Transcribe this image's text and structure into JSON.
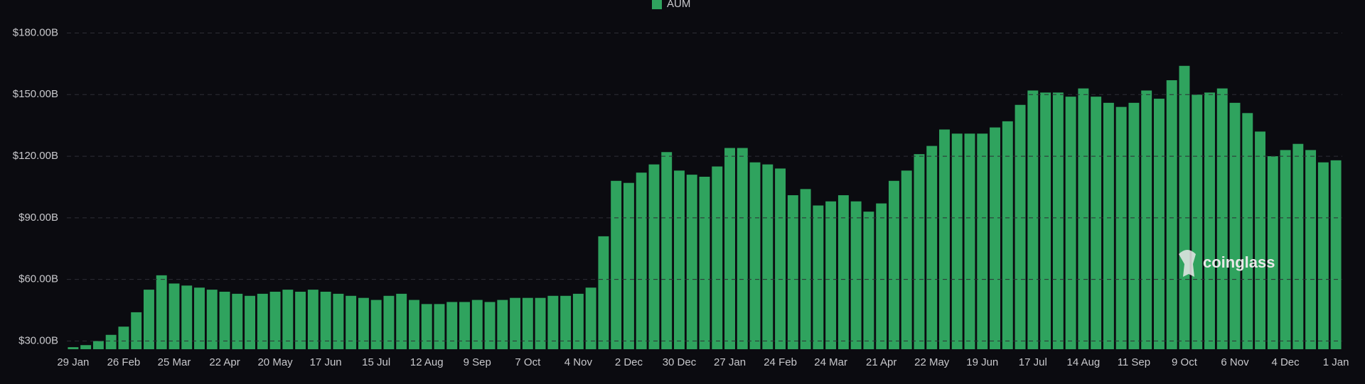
{
  "chart_data": {
    "type": "bar",
    "legend": "AUM",
    "watermark": "coinglass",
    "color": "#2fa35e",
    "grid": true,
    "categories": [
      "29 Jan",
      null,
      null,
      null,
      "26 Feb",
      null,
      null,
      null,
      "25 Mar",
      null,
      null,
      null,
      "22 Apr",
      null,
      null,
      null,
      "20 May",
      null,
      null,
      null,
      "17 Jun",
      null,
      null,
      null,
      "15 Jul",
      null,
      null,
      null,
      "12 Aug",
      null,
      null,
      null,
      "9 Sep",
      null,
      null,
      null,
      "7 Oct",
      null,
      null,
      null,
      "4 Nov",
      null,
      null,
      null,
      "2 Dec",
      null,
      null,
      null,
      "30 Dec",
      null,
      null,
      null,
      "27 Jan",
      null,
      null,
      null,
      "24 Feb",
      null,
      null,
      null,
      "24 Mar",
      null,
      null,
      null,
      "21 Apr",
      null,
      null,
      null,
      "22 May",
      null,
      null,
      null,
      "19 Jun",
      null,
      null,
      null,
      "17 Jul",
      null,
      null,
      null,
      "14 Aug",
      null,
      null,
      null,
      "11 Sep",
      null,
      null,
      null,
      "9 Oct",
      null,
      null,
      null,
      "6 Nov",
      null,
      null,
      null,
      "4 Dec",
      null,
      null,
      null,
      "1 Jan"
    ],
    "values": [
      27,
      28,
      30,
      33,
      37,
      44,
      55,
      62,
      58,
      57,
      56,
      55,
      54,
      53,
      52,
      53,
      54,
      55,
      54,
      55,
      54,
      53,
      52,
      51,
      50,
      52,
      53,
      50,
      48,
      48,
      49,
      49,
      50,
      49,
      50,
      51,
      51,
      51,
      52,
      52,
      53,
      56,
      81,
      108,
      107,
      112,
      116,
      122,
      113,
      111,
      110,
      115,
      124,
      124,
      117,
      116,
      114,
      101,
      104,
      96,
      98,
      101,
      98,
      93,
      97,
      108,
      113,
      121,
      125,
      133,
      131,
      131,
      131,
      134,
      137,
      145,
      152,
      151,
      151,
      149,
      153,
      149,
      146,
      144,
      146,
      152,
      148,
      157,
      164,
      150,
      151,
      153,
      146,
      141,
      132,
      120,
      123,
      126,
      123,
      117,
      118
    ],
    "ylim": [
      26,
      185.7
    ],
    "yticks": [
      {
        "value": 30,
        "label": "$30.00B"
      },
      {
        "value": 60,
        "label": "$60.00B"
      },
      {
        "value": 90,
        "label": "$90.00B"
      },
      {
        "value": 120,
        "label": "$120.00B"
      },
      {
        "value": 150,
        "label": "$150.00B"
      },
      {
        "value": 180,
        "label": "$180.00B"
      }
    ]
  }
}
